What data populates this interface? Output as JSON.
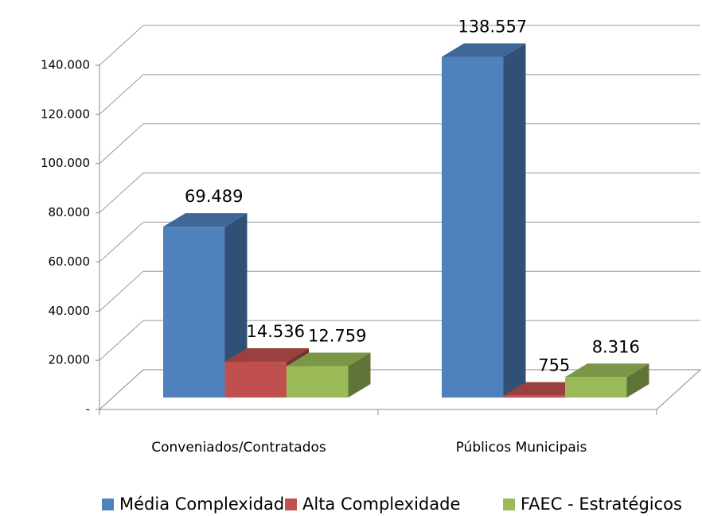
{
  "chart_data": {
    "type": "bar3d",
    "categories": [
      "Conveniados/Contratados",
      "Públicos Municipais"
    ],
    "series": [
      {
        "name": "Média Complexidade",
        "color": "#4f81bd",
        "values": [
          69489,
          138557
        ],
        "value_labels": [
          "69.489",
          "138.557"
        ]
      },
      {
        "name": "Alta Complexidade",
        "color": "#c0504d",
        "values": [
          14536,
          755
        ],
        "value_labels": [
          "14.536",
          "755"
        ]
      },
      {
        "name": "FAEC - Estratégicos",
        "color": "#9bbb59",
        "values": [
          12759,
          8316
        ],
        "value_labels": [
          "12.759",
          "8.316"
        ]
      }
    ],
    "ylim": [
      0,
      140000
    ],
    "yticks": [
      {
        "value": 0,
        "label": "-"
      },
      {
        "value": 20000,
        "label": "20.000"
      },
      {
        "value": 40000,
        "label": "40.000"
      },
      {
        "value": 60000,
        "label": "60.000"
      },
      {
        "value": 80000,
        "label": "80.000"
      },
      {
        "value": 100000,
        "label": "100.000"
      },
      {
        "value": 120000,
        "label": "120.000"
      },
      {
        "value": 140000,
        "label": "140.000"
      }
    ],
    "grid": true,
    "legend": "bottom"
  }
}
